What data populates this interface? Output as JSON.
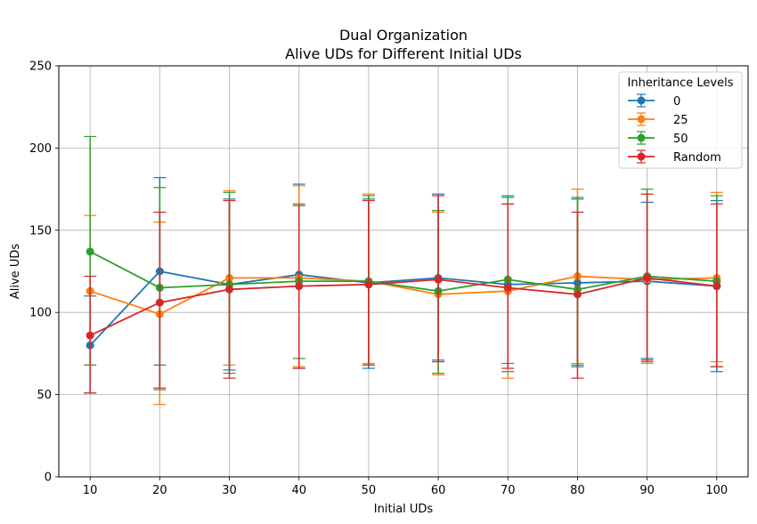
{
  "chart_data": {
    "type": "line",
    "title": "Dual Organization",
    "subtitle": "Alive UDs for Different Initial UDs",
    "xlabel": "Initial UDs",
    "ylabel": "Alive UDs",
    "x": [
      10,
      20,
      30,
      40,
      50,
      60,
      70,
      80,
      90,
      100
    ],
    "xticks": [
      "10",
      "20",
      "30",
      "40",
      "50",
      "60",
      "70",
      "80",
      "90",
      "100"
    ],
    "ylim": [
      0,
      250
    ],
    "yticks": [
      "0",
      "50",
      "100",
      "150",
      "200",
      "250"
    ],
    "grid": true,
    "legend": {
      "title": "Inheritance Levels",
      "placement": "top-right"
    },
    "series": [
      {
        "name": "0",
        "color": "#1f77b4",
        "values": [
          80,
          125,
          117,
          123,
          118,
          121,
          117,
          118,
          119,
          116
        ],
        "err_low": [
          51,
          68,
          65,
          66,
          66,
          71,
          64,
          67,
          72,
          64
        ],
        "err_high": [
          110,
          182,
          169,
          178,
          169,
          172,
          170,
          169,
          167,
          168
        ]
      },
      {
        "name": "25",
        "color": "#ff7f0e",
        "values": [
          113,
          99,
          121,
          121,
          119,
          111,
          113,
          122,
          120,
          121
        ],
        "err_low": [
          68,
          44,
          68,
          67,
          69,
          62,
          60,
          69,
          69,
          70
        ],
        "err_high": [
          159,
          155,
          174,
          177,
          172,
          161,
          166,
          175,
          172,
          173
        ]
      },
      {
        "name": "50",
        "color": "#2ca02c",
        "values": [
          137,
          115,
          117,
          119,
          119,
          113,
          120,
          114,
          122,
          119
        ],
        "err_low": [
          68,
          53,
          63,
          72,
          68,
          63,
          69,
          68,
          70,
          67
        ],
        "err_high": [
          207,
          176,
          173,
          166,
          171,
          162,
          171,
          170,
          175,
          171
        ]
      },
      {
        "name": "Random",
        "color": "#d62728",
        "values": [
          86,
          106,
          114,
          116,
          117,
          120,
          115,
          111,
          121,
          116
        ],
        "err_low": [
          51,
          54,
          60,
          66,
          68,
          70,
          66,
          60,
          71,
          67
        ],
        "err_high": [
          122,
          161,
          168,
          165,
          168,
          171,
          166,
          161,
          172,
          166
        ]
      }
    ]
  }
}
